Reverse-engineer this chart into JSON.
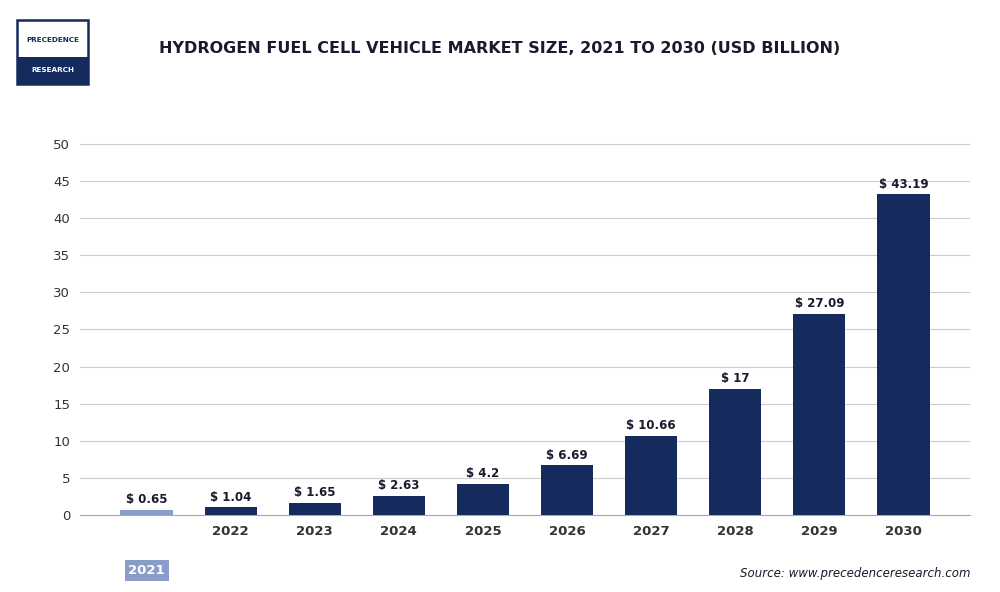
{
  "title": "HYDROGEN FUEL CELL VEHICLE MARKET SIZE, 2021 TO 2030 (USD BILLION)",
  "years": [
    "2021",
    "2022",
    "2023",
    "2024",
    "2025",
    "2026",
    "2027",
    "2028",
    "2029",
    "2030"
  ],
  "values": [
    0.65,
    1.04,
    1.65,
    2.63,
    4.2,
    6.69,
    10.66,
    17,
    27.09,
    43.19
  ],
  "labels": [
    "$ 0.65",
    "$ 1.04",
    "$ 1.65",
    "$ 2.63",
    "$ 4.2",
    "$ 6.69",
    "$ 10.66",
    "$ 17",
    "$ 27.09",
    "$ 43.19"
  ],
  "first_bar_color": "#8a9cc8",
  "dark_bar_color": "#152b5e",
  "ylim": [
    0,
    55
  ],
  "yticks": [
    0,
    5,
    10,
    15,
    20,
    25,
    30,
    35,
    40,
    45,
    50
  ],
  "background_color": "#ffffff",
  "plot_bg_color": "#ffffff",
  "grid_color": "#cccccc",
  "source_text": "Source: www.precedenceresearch.com",
  "title_color": "#1a1a2e",
  "bar_label_color": "#1a1a2e",
  "source_color": "#1a1a2e",
  "tick_label_color": "#333333",
  "logo_border_color": "#152b5e",
  "logo_text_top": "PRECEDENCE",
  "logo_text_bottom": "RESEARCH"
}
